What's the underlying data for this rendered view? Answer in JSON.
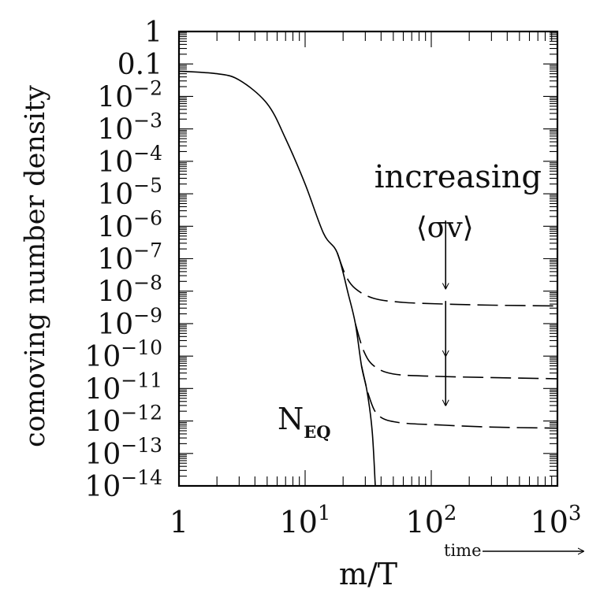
{
  "chart_data": {
    "type": "line",
    "xlabel": "m/T",
    "ylabel": "comoving number density",
    "xscale": "log",
    "yscale": "log",
    "xlim": [
      1,
      1000
    ],
    "ylim": [
      1e-14,
      1
    ],
    "x_ticks": [
      {
        "value": 1,
        "label": "1"
      },
      {
        "value": 10,
        "base": "10",
        "exp": "1"
      },
      {
        "value": 100,
        "base": "10",
        "exp": "2"
      },
      {
        "value": 1000,
        "base": "10",
        "exp": "3"
      }
    ],
    "y_ticks": [
      {
        "value": 1,
        "label": "1"
      },
      {
        "value": 0.1,
        "label": "0.1"
      },
      {
        "value": 0.01,
        "base": "10",
        "exp": "−2"
      },
      {
        "value": 0.001,
        "base": "10",
        "exp": "−3"
      },
      {
        "value": 0.0001,
        "base": "10",
        "exp": "−4"
      },
      {
        "value": 1e-05,
        "base": "10",
        "exp": "−5"
      },
      {
        "value": 1e-06,
        "base": "10",
        "exp": "−6"
      },
      {
        "value": 1e-07,
        "base": "10",
        "exp": "−7"
      },
      {
        "value": 1e-08,
        "base": "10",
        "exp": "−8"
      },
      {
        "value": 1e-09,
        "base": "10",
        "exp": "−9"
      },
      {
        "value": 1e-10,
        "base": "10",
        "exp": "−10"
      },
      {
        "value": 1e-11,
        "base": "10",
        "exp": "−11"
      },
      {
        "value": 1e-12,
        "base": "10",
        "exp": "−12"
      },
      {
        "value": 1e-13,
        "base": "10",
        "exp": "−13"
      },
      {
        "value": 1e-14,
        "base": "10",
        "exp": "−14"
      }
    ],
    "series": [
      {
        "name": "N_EQ",
        "style": "solid",
        "points": [
          [
            1,
            0.06
          ],
          [
            2,
            0.05
          ],
          [
            3,
            0.032
          ],
          [
            5,
            0.006
          ],
          [
            7,
            0.0005
          ],
          [
            10,
            2e-05
          ],
          [
            14,
            6e-07
          ],
          [
            18,
            1.5e-07
          ],
          [
            22,
            8e-09
          ],
          [
            25,
            1e-09
          ],
          [
            28,
            5e-11
          ],
          [
            31,
            8e-12
          ],
          [
            34,
            5e-13
          ],
          [
            36,
            1e-14
          ]
        ]
      },
      {
        "style": "dashed",
        "points": [
          [
            18,
            1.5e-07
          ],
          [
            21,
            3e-08
          ],
          [
            25,
            1.2e-08
          ],
          [
            35,
            6e-09
          ],
          [
            60,
            4.5e-09
          ],
          [
            130,
            4e-09
          ],
          [
            300,
            3.7e-09
          ],
          [
            1000,
            3.5e-09
          ]
        ]
      },
      {
        "style": "dashed",
        "points": [
          [
            25,
            1e-09
          ],
          [
            29,
            1.5e-10
          ],
          [
            35,
            5e-11
          ],
          [
            50,
            2.8e-11
          ],
          [
            100,
            2.4e-11
          ],
          [
            250,
            2.2e-11
          ],
          [
            1000,
            2e-11
          ]
        ]
      },
      {
        "style": "dashed",
        "points": [
          [
            28,
            5e-11
          ],
          [
            32,
            6e-12
          ],
          [
            38,
            1.5e-12
          ],
          [
            55,
            9e-13
          ],
          [
            120,
            7.5e-13
          ],
          [
            300,
            6.5e-13
          ],
          [
            1000,
            6e-13
          ]
        ]
      }
    ],
    "annotations": {
      "increasing": "increasing",
      "sigma_v": "⟨σv⟩",
      "neq_main": "N",
      "neq_sub": "EQ",
      "time": "time",
      "arrow_x": 130,
      "arrows": [
        {
          "from": 1.5e-06,
          "to": 1.2e-08
        },
        {
          "from": 5e-09,
          "to": 1e-10
        },
        {
          "from": 1.5e-10,
          "to": 3e-12
        }
      ]
    }
  }
}
